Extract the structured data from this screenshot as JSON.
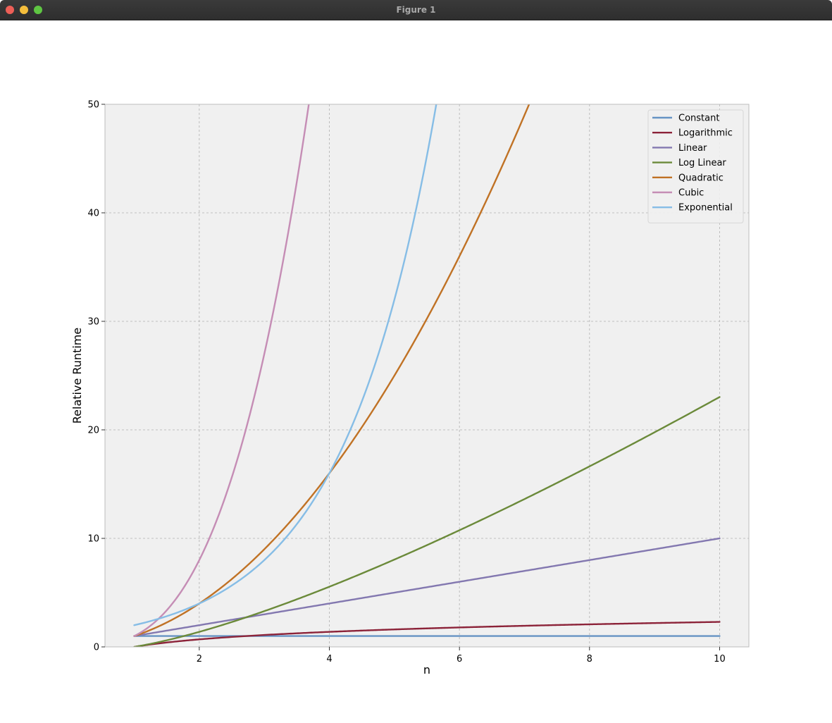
{
  "window": {
    "title": "Figure 1"
  },
  "colors": {
    "plot_background": "#f0f0f0",
    "grid": "#b0b0b0",
    "spine": "#bcbcbc"
  },
  "chart_data": {
    "type": "line",
    "title": "",
    "xlabel": "n",
    "ylabel": "Relative Runtime",
    "xlim": [
      0.55,
      10.45
    ],
    "ylim": [
      0,
      50
    ],
    "xticks": [
      2,
      4,
      6,
      8,
      10
    ],
    "yticks": [
      0,
      10,
      20,
      30,
      40,
      50
    ],
    "grid": true,
    "legend_position": "top-right",
    "x_domain": [
      1,
      10
    ],
    "series": [
      {
        "name": "Constant",
        "formula": "1",
        "color": "#6693c4",
        "x": [
          1,
          2,
          4,
          6,
          8,
          10
        ],
        "y": [
          1,
          1,
          1,
          1,
          1,
          1
        ]
      },
      {
        "name": "Logarithmic",
        "formula": "ln(n)",
        "color": "#8c2339",
        "x": [
          1,
          2,
          4,
          6,
          8,
          10
        ],
        "y": [
          0,
          0.69,
          1.39,
          1.79,
          2.08,
          2.3
        ]
      },
      {
        "name": "Linear",
        "formula": "n",
        "color": "#8378b0",
        "x": [
          1,
          2,
          4,
          6,
          8,
          10
        ],
        "y": [
          1,
          2,
          4,
          6,
          8,
          10
        ]
      },
      {
        "name": "Log Linear",
        "formula": "n*ln(n)",
        "color": "#6b8a3a",
        "x": [
          1,
          2,
          4,
          6,
          8,
          10
        ],
        "y": [
          0,
          1.39,
          5.55,
          10.75,
          16.64,
          23.03
        ]
      },
      {
        "name": "Quadratic",
        "formula": "n^2",
        "color": "#c07225",
        "x": [
          1,
          2,
          4,
          6,
          7.07
        ],
        "y": [
          1,
          4,
          16,
          36,
          50
        ]
      },
      {
        "name": "Cubic",
        "formula": "n^3",
        "color": "#c58db5",
        "x": [
          1,
          2,
          3,
          3.68
        ],
        "y": [
          1,
          8,
          27,
          50
        ]
      },
      {
        "name": "Exponential",
        "formula": "2^n",
        "color": "#86bde6",
        "x": [
          1,
          2,
          4,
          5,
          5.64
        ],
        "y": [
          2,
          4,
          16,
          32,
          50
        ]
      }
    ]
  }
}
